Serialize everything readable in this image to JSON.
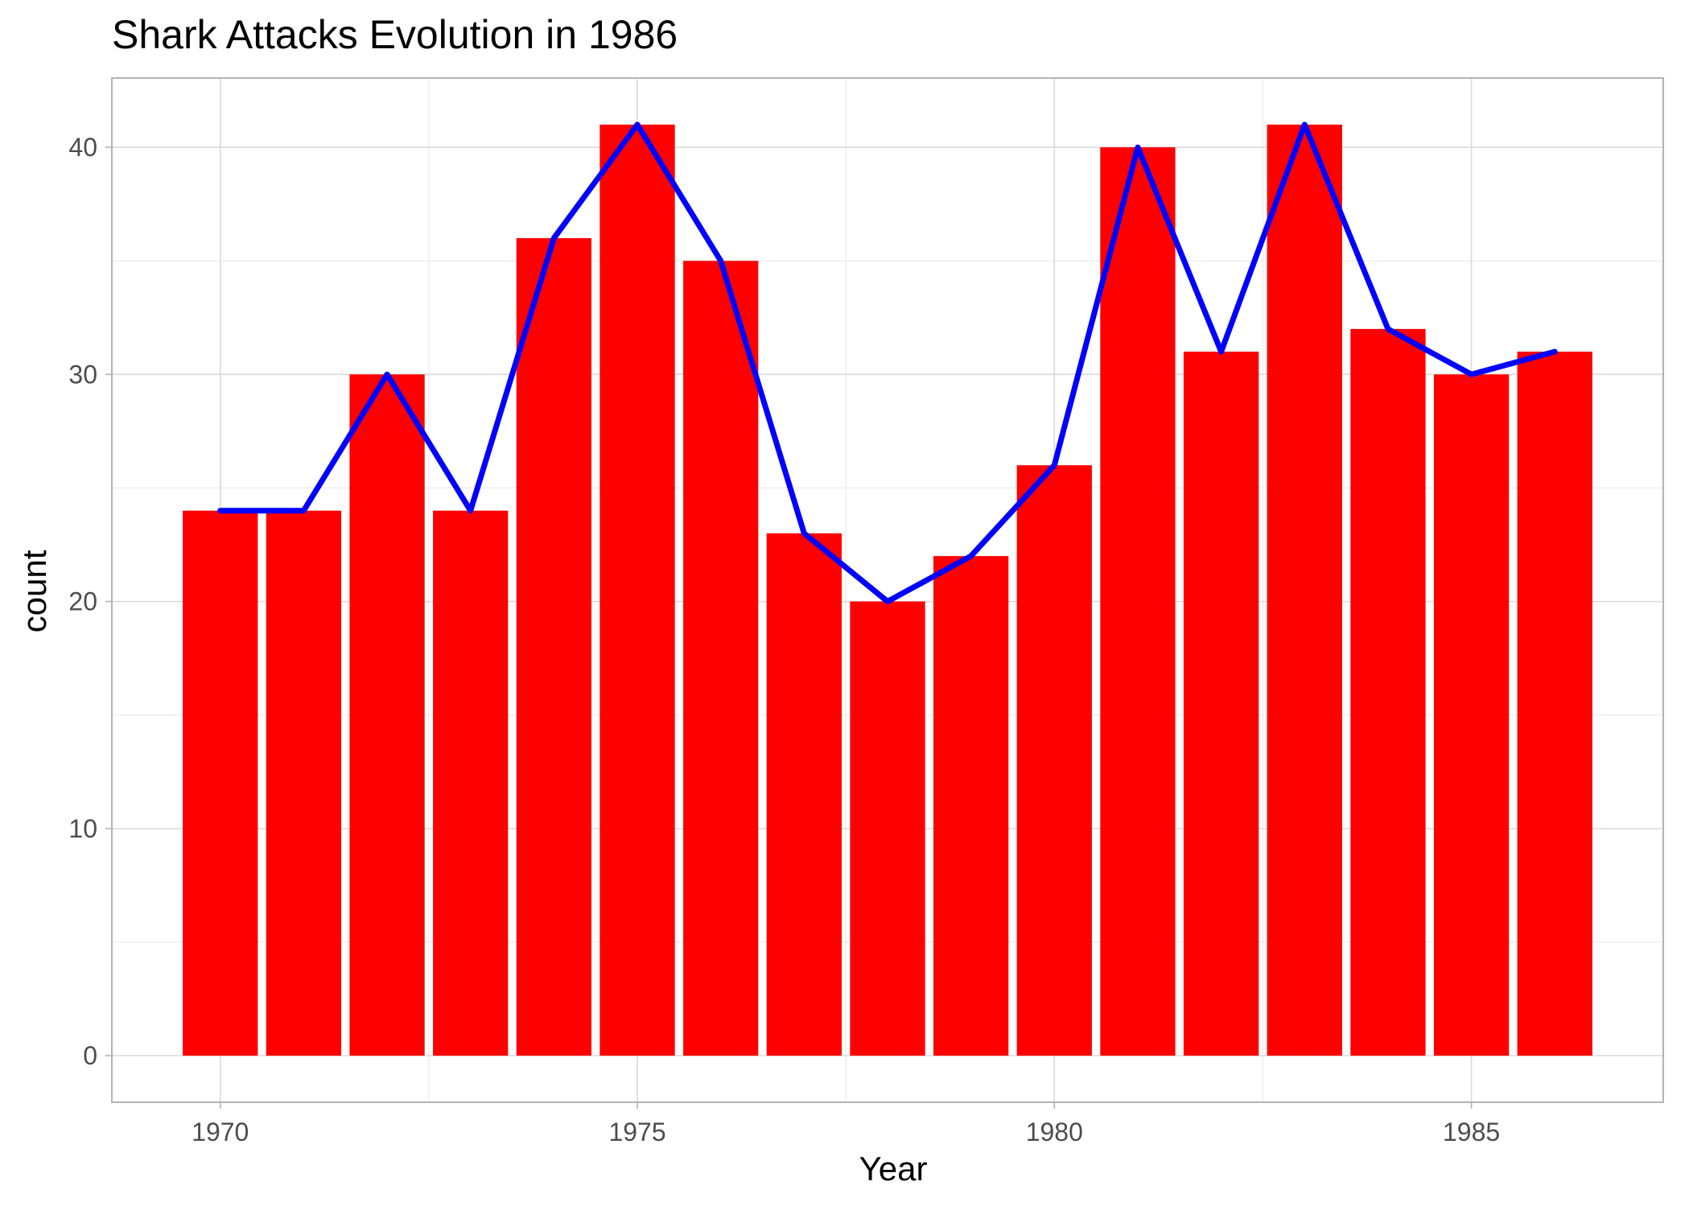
{
  "chart_data": {
    "type": "bar",
    "title": "Shark Attacks Evolution in 1986",
    "xlabel": "Year",
    "ylabel": "count",
    "x": [
      1970,
      1971,
      1972,
      1973,
      1974,
      1975,
      1976,
      1977,
      1978,
      1979,
      1980,
      1981,
      1982,
      1983,
      1984,
      1985,
      1986
    ],
    "values": [
      24,
      24,
      30,
      24,
      36,
      41,
      35,
      23,
      20,
      22,
      26,
      40,
      31,
      41,
      32,
      30,
      31
    ],
    "overlay_line": {
      "values": [
        24,
        24,
        30,
        24,
        36,
        41,
        35,
        23,
        20,
        22,
        26,
        40,
        31,
        41,
        32,
        30,
        31
      ],
      "color": "#0000ff"
    },
    "bar_color": "#ff0000",
    "x_ticks": [
      "1970",
      "1975",
      "1980",
      "1985"
    ],
    "y_ticks": [
      "0",
      "10",
      "20",
      "30",
      "40"
    ],
    "xlim": [
      1968.7,
      1987.3
    ],
    "ylim": [
      -2.05,
      43.05
    ],
    "grid": true,
    "legend": "none"
  }
}
